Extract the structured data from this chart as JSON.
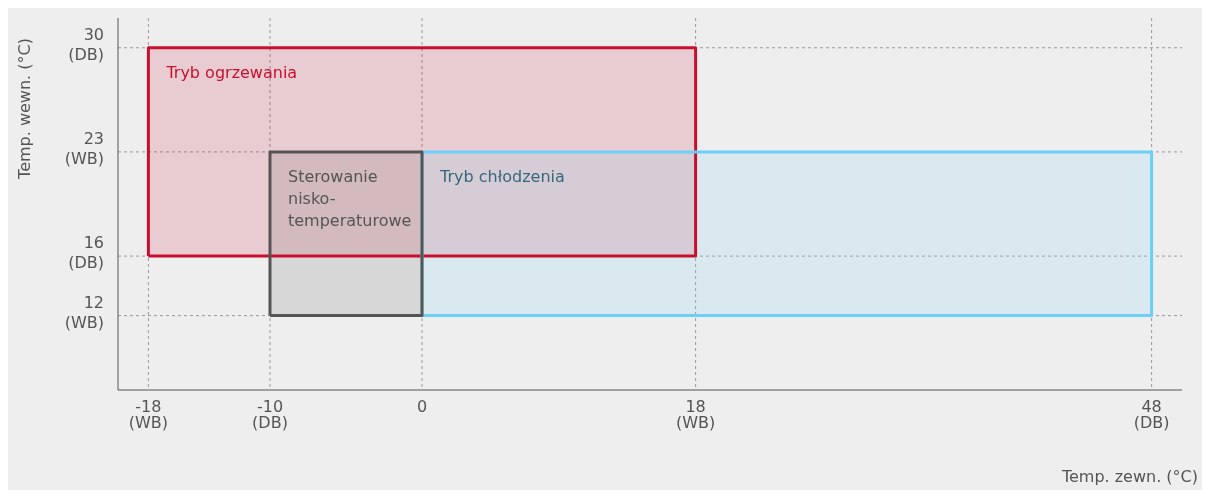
{
  "chart_data": {
    "type": "area",
    "xlabel": "Temp. zewn. (°C)",
    "ylabel": "Temp. wewn. (°C)",
    "xlim": [
      -20,
      50
    ],
    "ylim": [
      7,
      32
    ],
    "xticks": [
      {
        "value": -18,
        "label": "-18 (WB)"
      },
      {
        "value": -10,
        "label": "-10 (DB)"
      },
      0,
      {
        "value": 18,
        "label": "18 (WB)"
      },
      {
        "value": 48,
        "label": "48 (DB)"
      }
    ],
    "yticks": [
      {
        "value": 12,
        "label": "12 (WB)"
      },
      {
        "value": 16,
        "label": "16 (DB)"
      },
      {
        "value": 23,
        "label": "23 (WB)"
      },
      {
        "value": 30,
        "label": "30 (DB)"
      }
    ],
    "grid": true,
    "series": [
      {
        "name": "Tryb ogrzewania",
        "color": "#c8102e",
        "x": [
          -18,
          18,
          18,
          -18,
          -18
        ],
        "values": [
          16,
          16,
          30,
          30,
          16
        ]
      },
      {
        "name": "Tryb chłodzenia",
        "color": "#6ccff6",
        "x": [
          0,
          48,
          48,
          0,
          0
        ],
        "values": [
          12,
          12,
          23,
          23,
          12
        ]
      },
      {
        "name": "Sterowanie nisko-temperaturowe",
        "color": "#555555",
        "x": [
          -10,
          0,
          0,
          -10,
          -10
        ],
        "values": [
          12,
          12,
          23,
          23,
          12
        ]
      }
    ]
  }
}
